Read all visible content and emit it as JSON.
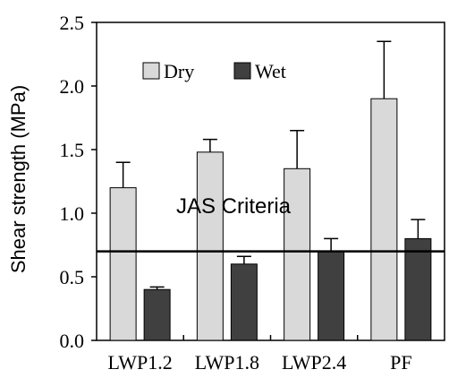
{
  "chart_data": {
    "type": "bar",
    "title": "",
    "xlabel": "",
    "ylabel": "Shear strength (MPa)",
    "categories": [
      "LWP1.2",
      "LWP1.8",
      "LWP2.4",
      "PF"
    ],
    "ylim": [
      0,
      2.5
    ],
    "yticks": [
      0.0,
      0.5,
      1.0,
      1.5,
      2.0,
      2.5
    ],
    "ytick_labels": [
      "0.0",
      "0.5",
      "1.0",
      "1.5",
      "2.0",
      "2.5"
    ],
    "grid": false,
    "legend_position": "top-left",
    "series": [
      {
        "name": "Dry",
        "color": "#d9d9d9",
        "values": [
          1.2,
          1.48,
          1.35,
          1.9
        ],
        "error_upper": [
          1.4,
          1.58,
          1.65,
          2.35
        ]
      },
      {
        "name": "Wet",
        "color": "#404040",
        "values": [
          0.4,
          0.6,
          0.7,
          0.8
        ],
        "error_upper": [
          0.42,
          0.66,
          0.8,
          0.95
        ]
      }
    ],
    "reference_line": {
      "value": 0.7,
      "label": "JAS Criteria"
    }
  }
}
